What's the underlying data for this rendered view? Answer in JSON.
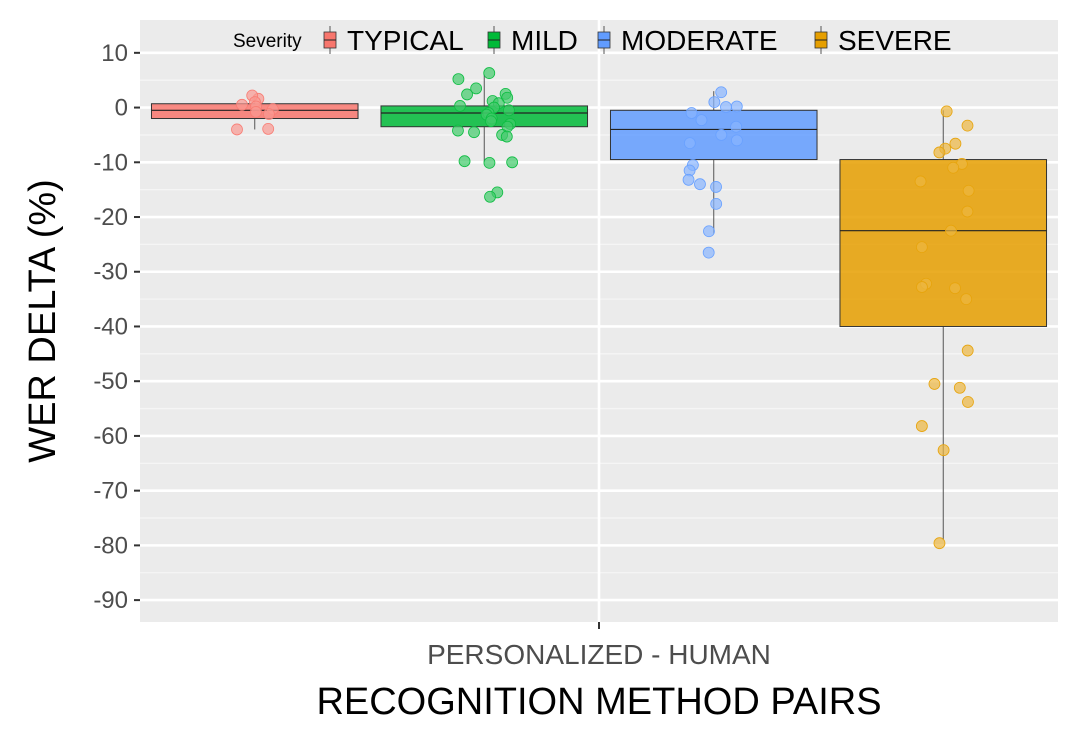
{
  "chart_data": {
    "type": "boxplot",
    "xlabel": "RECOGNITION METHOD PAIRS",
    "ylabel": "WER DELTA (%)",
    "categories": [
      "PERSONALIZED - HUMAN"
    ],
    "ylim": [
      -94,
      16
    ],
    "yticks": [
      10,
      0,
      -10,
      -20,
      -30,
      -40,
      -50,
      -60,
      -70,
      -80,
      -90
    ],
    "grid": true,
    "legend": {
      "title": "Severity",
      "position": "top"
    },
    "series": [
      {
        "name": "TYPICAL",
        "color": "#F8766D",
        "box": {
          "whisker_low": -4,
          "q1": -2,
          "median": -0.5,
          "q3": 0.7,
          "whisker_high": 2
        },
        "points": [
          -4,
          -3.9,
          1.6,
          2.2,
          0.5,
          -0.3,
          -1.2,
          1.0,
          0.2,
          -0.8
        ]
      },
      {
        "name": "MILD",
        "color": "#00BA38",
        "box": {
          "whisker_low": -10,
          "q1": -3.5,
          "median": -1,
          "q3": 0.3,
          "whisker_high": 6
        },
        "points": [
          6.3,
          5.2,
          3.5,
          2.5,
          2.4,
          1.8,
          1.2,
          0.8,
          0.3,
          0,
          -0.5,
          -1,
          -1.3,
          -2,
          -2.5,
          -3,
          -3.5,
          -4.2,
          -5,
          -5.3,
          -4.5,
          -9.8,
          -10,
          -10.1,
          -15.5,
          -16.3
        ]
      },
      {
        "name": "MODERATE",
        "color": "#619CFF",
        "box": {
          "whisker_low": -23,
          "q1": -9.5,
          "median": -4,
          "q3": -0.5,
          "whisker_high": 3
        },
        "points": [
          2.8,
          1,
          0.2,
          0.1,
          -1,
          -2.3,
          -3.5,
          -5,
          -6,
          -6.5,
          -10.5,
          -11.5,
          -13.2,
          -14,
          -14.5,
          -17.6,
          -22.6,
          -26.5
        ]
      },
      {
        "name": "SEVERE",
        "color": "#E69F00",
        "box": {
          "whisker_low": -79,
          "q1": -40,
          "median": -22.5,
          "q3": -9.5,
          "whisker_high": -0.5
        },
        "points": [
          -0.7,
          -3.3,
          -6.6,
          -7.5,
          -8.2,
          -10.3,
          -11,
          -13.5,
          -15.2,
          -19,
          -22.5,
          -25.5,
          -32.2,
          -32.8,
          -33,
          -35,
          -44.4,
          -50.5,
          -51.2,
          -53.8,
          -58.2,
          -62.6,
          -79.6
        ]
      }
    ]
  }
}
